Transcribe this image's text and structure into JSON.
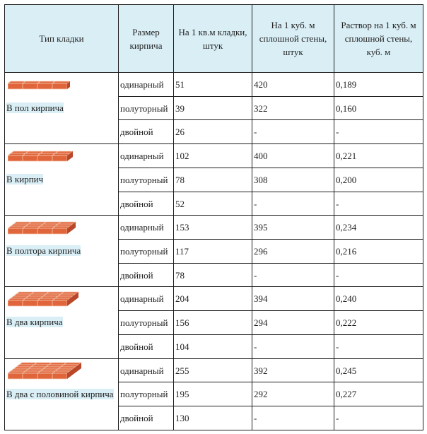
{
  "headers": {
    "type": "Тип кладки",
    "size": "Размер кирпича",
    "per_sqm": "На 1 кв.м кладки, штук",
    "per_cubic": "На 1 куб. м сплошной стены, штук",
    "mortar": "Раствор на 1 куб. м сплошной стены, куб. м"
  },
  "groups": [
    {
      "type": "В пол кирпича",
      "icon": "brick-half-icon",
      "rows": [
        {
          "size": "одинарный",
          "per_sqm": "51",
          "per_cubic": "420",
          "mortar": "0,189"
        },
        {
          "size": "полуторный",
          "per_sqm": "39",
          "per_cubic": "322",
          "mortar": "0,160"
        },
        {
          "size": "двойной",
          "per_sqm": "26",
          "per_cubic": "-",
          "mortar": "-"
        }
      ]
    },
    {
      "type": "В кирпич",
      "icon": "brick-one-icon",
      "rows": [
        {
          "size": "одинарный",
          "per_sqm": "102",
          "per_cubic": "400",
          "mortar": "0,221"
        },
        {
          "size": "полуторный",
          "per_sqm": "78",
          "per_cubic": "308",
          "mortar": "0,200"
        },
        {
          "size": "двойной",
          "per_sqm": "52",
          "per_cubic": "-",
          "mortar": "-"
        }
      ]
    },
    {
      "type": "В полтора кирпича",
      "icon": "brick-one-half-icon",
      "rows": [
        {
          "size": "одинарный",
          "per_sqm": "153",
          "per_cubic": "395",
          "mortar": "0,234"
        },
        {
          "size": "полуторный",
          "per_sqm": "117",
          "per_cubic": "296",
          "mortar": "0,216"
        },
        {
          "size": "двойной",
          "per_sqm": "78",
          "per_cubic": "-",
          "mortar": "-"
        }
      ]
    },
    {
      "type": "В два кирпича",
      "icon": "brick-two-icon",
      "rows": [
        {
          "size": "одинарный",
          "per_sqm": "204",
          "per_cubic": "394",
          "mortar": "0,240"
        },
        {
          "size": "полуторный",
          "per_sqm": "156",
          "per_cubic": "294",
          "mortar": "0,222"
        },
        {
          "size": "двойной",
          "per_sqm": "104",
          "per_cubic": "-",
          "mortar": "-"
        }
      ]
    },
    {
      "type": "В два с половиной кирпича",
      "icon": "brick-two-half-icon",
      "rows": [
        {
          "size": "одинарный",
          "per_sqm": "255",
          "per_cubic": "392",
          "mortar": "0,245"
        },
        {
          "size": "полуторный",
          "per_sqm": "195",
          "per_cubic": "292",
          "mortar": "0,227"
        },
        {
          "size": "двойной",
          "per_sqm": "130",
          "per_cubic": "-",
          "mortar": "-"
        }
      ]
    }
  ],
  "colors": {
    "header_bg": "#d9eef5",
    "brick": "#e0653a",
    "brick_dark": "#b9472a",
    "mortar": "#f3c7b2"
  }
}
